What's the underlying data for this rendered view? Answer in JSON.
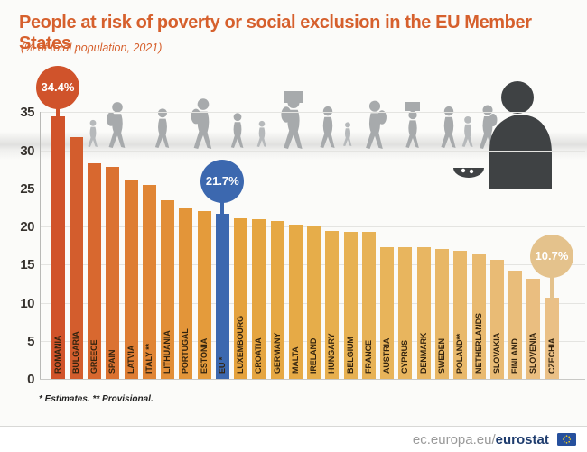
{
  "header": {
    "title": "People at risk of poverty or social exclusion in the EU Member States",
    "subtitle": "(% of total population, 2021)"
  },
  "footnote": "* Estimates. ** Provisional.",
  "footer": {
    "url_prefix": "ec.europa.eu/",
    "url_bold": "eurostat"
  },
  "colors": {
    "title_orange": "#d6602d",
    "eu_bar_blue": "#3c68af",
    "callout_romania": "#d0532b",
    "callout_eu": "#3c68af",
    "callout_czechia": "#e4c28c",
    "silhouette_gray": "#a7aaac",
    "poverty_icon_gray": "#3f4244",
    "axis_text": "#35312d",
    "bar_label_text": "#33230e",
    "footer_gray": "#9a9a9a",
    "footer_navy": "#1e3c6e"
  },
  "chart_data": {
    "type": "bar",
    "title": "People at risk of poverty or social exclusion in the EU Member States",
    "subtitle": "(% of total population, 2021)",
    "xlabel": "",
    "ylabel": "% of total population",
    "ylim": [
      0,
      35
    ],
    "yticks": [
      0,
      5,
      10,
      15,
      20,
      25,
      30,
      35
    ],
    "grid": true,
    "legend": "none",
    "categories": [
      "ROMANIA",
      "BULGARIA",
      "GREECE",
      "SPAIN",
      "LATVIA",
      "ITALY **",
      "LITHUANIA",
      "PORTUGAL",
      "ESTONIA",
      "EU *",
      "LUXEMBOURG",
      "CROATIA",
      "GERMANY",
      "MALTA",
      "IRELAND",
      "HUNGARY",
      "BELGIUM",
      "FRANCE",
      "AUSTRIA",
      "CYPRUS",
      "DENMARK",
      "SWEDEN",
      "POLAND**",
      "NETHERLANDS",
      "SLOVAKIA",
      "FINLAND",
      "SLOVENIA",
      "CZECHIA"
    ],
    "values": [
      34.4,
      31.7,
      28.3,
      27.8,
      26.1,
      25.4,
      23.4,
      22.4,
      22.0,
      21.7,
      21.1,
      20.9,
      20.7,
      20.3,
      20.0,
      19.4,
      19.3,
      19.3,
      17.3,
      17.3,
      17.3,
      17.1,
      16.8,
      16.4,
      15.6,
      14.2,
      13.2,
      10.7
    ],
    "bar_colors": [
      "#d1532a",
      "#d35d2d",
      "#d8682f",
      "#db7231",
      "#de7d33",
      "#e08535",
      "#e28e37",
      "#e39539",
      "#e49b3b",
      "#3c68af",
      "#e5a23d",
      "#e5a540",
      "#e6a843",
      "#e6aa46",
      "#e6ad4a",
      "#e7af4e",
      "#e7b152",
      "#e7b256",
      "#e8b45a",
      "#e8b55e",
      "#e8b662",
      "#e8b766",
      "#e9b96b",
      "#e9ba70",
      "#e9bb75",
      "#e9bd7a",
      "#eabe80",
      "#eac086"
    ],
    "callouts": [
      {
        "bar_index": 0,
        "label": "34.4%",
        "color": "#d0532b"
      },
      {
        "bar_index": 9,
        "label": "21.7%",
        "color": "#3c68af"
      },
      {
        "bar_index": 27,
        "label": "10.7%",
        "color": "#e4c28c"
      }
    ]
  }
}
